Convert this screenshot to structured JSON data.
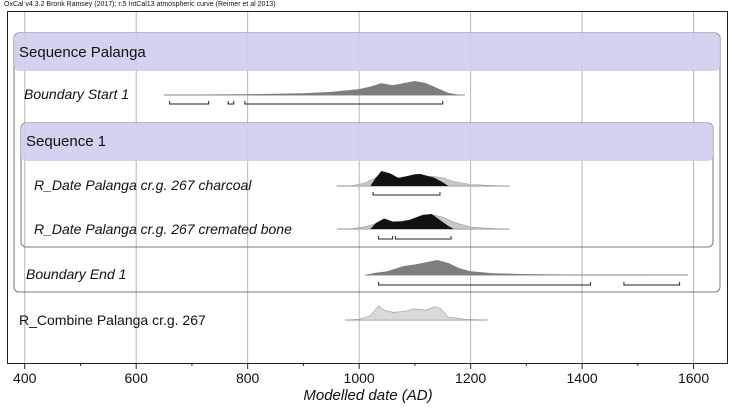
{
  "chart_data": {
    "type": "area",
    "title": "OxCal v4.3.2 Bronk Ramsey (2017); r:5 IntCal13 atmospheric curve (Reimer et al 2013)",
    "xlabel": "Modelled date (AD)",
    "xlim": [
      370,
      1660
    ],
    "xticks": [
      400,
      600,
      800,
      1000,
      1200,
      1400,
      1600
    ],
    "grid": true,
    "groups": [
      {
        "name": "Sequence Palanga"
      },
      {
        "name": "Sequence 1"
      }
    ],
    "rows": [
      {
        "name": "Boundary Start 1",
        "italic": true,
        "style": "boundary",
        "prior_x": [],
        "prior_y": [],
        "posterior_x": [
          650,
          700,
          750,
          800,
          850,
          900,
          950,
          1000,
          1020,
          1040,
          1060,
          1080,
          1100,
          1120,
          1140,
          1160,
          1180
        ],
        "posterior_y": [
          0.02,
          0.03,
          0.04,
          0.06,
          0.09,
          0.13,
          0.22,
          0.42,
          0.6,
          0.85,
          0.7,
          0.85,
          1.0,
          0.85,
          0.5,
          0.15,
          0.02
        ],
        "ranges": [
          [
            660,
            730
          ],
          [
            765,
            775
          ],
          [
            795,
            1150
          ]
        ]
      },
      {
        "name": "R_Date Palanga cr.g. 267 charcoal",
        "italic": true,
        "style": "date",
        "prior_x": [
          960,
          990,
          1010,
          1030,
          1050,
          1070,
          1090,
          1110,
          1130,
          1150,
          1170,
          1200,
          1240,
          1270
        ],
        "prior_y": [
          0.0,
          0.03,
          0.2,
          0.55,
          0.6,
          0.5,
          0.5,
          0.55,
          0.65,
          0.55,
          0.3,
          0.1,
          0.03,
          0.0
        ],
        "posterior_x": [
          1020,
          1030,
          1040,
          1055,
          1070,
          1085,
          1100,
          1110,
          1120,
          1135,
          1150,
          1160
        ],
        "posterior_y": [
          0.0,
          0.55,
          1.0,
          0.85,
          0.55,
          0.65,
          0.78,
          0.8,
          0.7,
          0.55,
          0.25,
          0.0
        ],
        "ranges": [
          [
            1025,
            1145
          ]
        ]
      },
      {
        "name": "R_Date Palanga cr.g. 267 cremated bone",
        "italic": true,
        "style": "date",
        "prior_x": [
          960,
          990,
          1010,
          1030,
          1050,
          1070,
          1090,
          1110,
          1130,
          1150,
          1170,
          1200,
          1240,
          1270
        ],
        "prior_y": [
          0.0,
          0.03,
          0.15,
          0.35,
          0.45,
          0.5,
          0.6,
          0.75,
          0.95,
          0.8,
          0.45,
          0.12,
          0.03,
          0.0
        ],
        "posterior_x": [
          1020,
          1030,
          1045,
          1060,
          1075,
          1090,
          1100,
          1115,
          1130,
          1145,
          1160,
          1170
        ],
        "posterior_y": [
          0.0,
          0.4,
          0.7,
          0.5,
          0.5,
          0.6,
          0.75,
          0.95,
          1.0,
          0.6,
          0.2,
          0.0
        ],
        "ranges": [
          [
            1035,
            1060
          ],
          [
            1065,
            1165
          ]
        ]
      },
      {
        "name": "Boundary End 1",
        "italic": true,
        "style": "boundary",
        "prior_x": [],
        "prior_y": [],
        "posterior_x": [
          1010,
          1030,
          1050,
          1080,
          1100,
          1120,
          1140,
          1160,
          1180,
          1200,
          1240,
          1300,
          1400,
          1500,
          1580
        ],
        "posterior_y": [
          0.0,
          0.15,
          0.25,
          0.6,
          0.7,
          0.85,
          1.0,
          0.8,
          0.45,
          0.25,
          0.12,
          0.06,
          0.03,
          0.02,
          0.0
        ],
        "ranges": [
          [
            1035,
            1415
          ],
          [
            1475,
            1575
          ]
        ]
      },
      {
        "name": "R_Combine Palanga cr.g. 267",
        "italic": false,
        "style": "combine",
        "prior_x": [
          975,
          1000,
          1020,
          1035,
          1045,
          1060,
          1080,
          1100,
          1120,
          1135,
          1145,
          1160,
          1190,
          1230
        ],
        "prior_y": [
          0.0,
          0.05,
          0.3,
          1.0,
          0.7,
          0.55,
          0.6,
          0.8,
          0.7,
          0.95,
          0.85,
          0.2,
          0.05,
          0.0
        ],
        "posterior_x": [],
        "posterior_y": [],
        "ranges": []
      }
    ]
  }
}
